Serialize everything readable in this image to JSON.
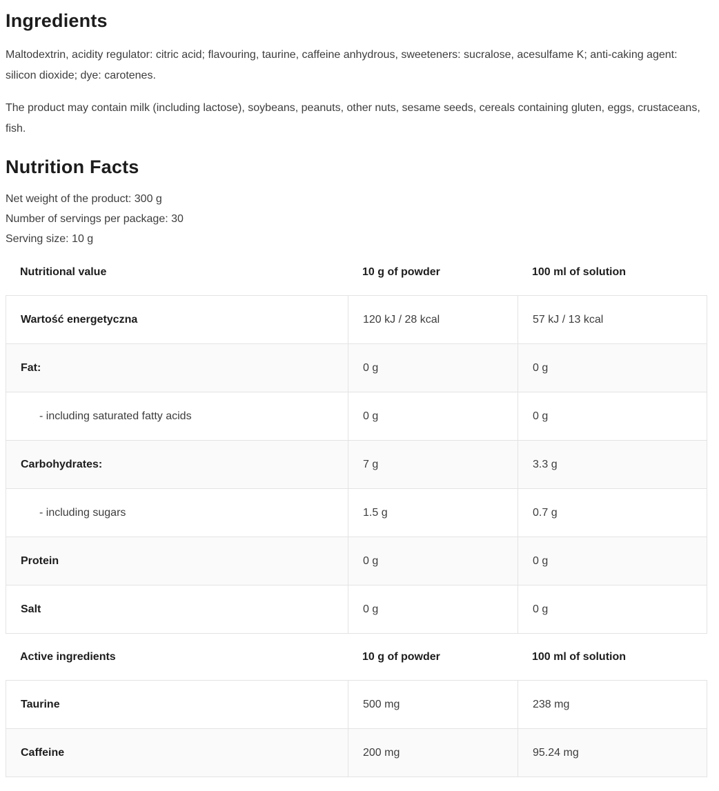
{
  "ingredients": {
    "title": "Ingredients",
    "paragraphs": [
      "Maltodextrin, acidity regulator: citric acid; flavouring, taurine, caffeine anhydrous, sweeteners: sucralose, acesulfame K; anti-caking agent: silicon dioxide; dye: carotenes.",
      "The product may contain milk (including lactose), soybeans, peanuts, other nuts, sesame seeds, cereals containing gluten, eggs, crustaceans, fish."
    ]
  },
  "nutrition": {
    "title": "Nutrition Facts",
    "meta": [
      "Net weight of the product: 300 g",
      "Number of servings per package: 30",
      "Serving size: 10 g"
    ],
    "tables": [
      {
        "header": [
          "Nutritional value",
          "10 g of powder",
          "100 ml of solution"
        ],
        "rows": [
          {
            "label": "Wartość energetyczna",
            "powder": "120 kJ / 28 kcal",
            "solution": "57 kJ / 13 kcal"
          },
          {
            "label": "Fat:",
            "powder": "0 g",
            "solution": "0 g"
          },
          {
            "label": "- including saturated fatty acids",
            "powder": "0 g",
            "solution": "0 g"
          },
          {
            "label": "Carbohydrates:",
            "powder": "7 g",
            "solution": "3.3 g"
          },
          {
            "label": "- including sugars",
            "powder": "1.5 g",
            "solution": "0.7 g"
          },
          {
            "label": "Protein",
            "powder": "0 g",
            "solution": "0 g"
          },
          {
            "label": "Salt",
            "powder": "0 g",
            "solution": "0 g"
          }
        ]
      },
      {
        "header": [
          "Active ingredients",
          "10 g of powder",
          "100 ml of solution"
        ],
        "rows": [
          {
            "label": "Taurine",
            "powder": "500 mg",
            "solution": "238 mg"
          },
          {
            "label": "Caffeine",
            "powder": "200 mg",
            "solution": "95.24 mg"
          }
        ]
      }
    ]
  },
  "style_colors": {
    "table_border": "#e3e3e3",
    "row_stripe": "#fafafa",
    "heading_text": "#1c1c1c",
    "body_text": "#3d3d3d"
  }
}
